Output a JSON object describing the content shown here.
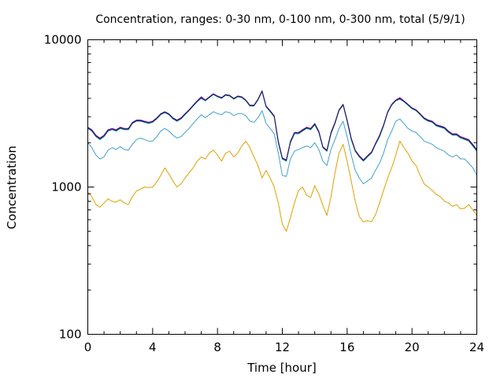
{
  "chart_data": {
    "type": "line",
    "title": "Concentration, ranges: 0-30 nm, 0-100 nm, 0-300 nm, total (5/9/1)",
    "xlabel": "Time [hour]",
    "ylabel": "Concentration",
    "xlim": [
      0,
      24
    ],
    "ylim": [
      100,
      10000
    ],
    "y_scale": "log",
    "x_ticks": [
      0,
      4,
      8,
      12,
      16,
      20,
      24
    ],
    "x_tick_labels": [
      "0",
      "4",
      "8",
      "12",
      "16",
      "20",
      "24"
    ],
    "y_ticks": [
      100,
      1000,
      10000
    ],
    "y_tick_labels": [
      "100",
      "1000",
      "10000"
    ],
    "legend": "none",
    "grid": false,
    "series": [
      {
        "color": "#e0a000",
        "x": [
          0,
          0.25,
          0.5,
          0.75,
          1,
          1.25,
          1.5,
          1.75,
          2,
          2.25,
          2.5,
          2.75,
          3,
          3.25,
          3.5,
          3.75,
          4,
          4.25,
          4.5,
          4.75,
          5,
          5.25,
          5.5,
          5.75,
          6,
          6.25,
          6.5,
          6.75,
          7,
          7.25,
          7.5,
          7.75,
          8,
          8.25,
          8.5,
          8.75,
          9,
          9.25,
          9.5,
          9.75,
          10,
          10.25,
          10.5,
          10.75,
          11,
          11.25,
          11.5,
          11.75,
          12,
          12.25,
          12.5,
          12.75,
          13,
          13.25,
          13.5,
          13.75,
          14,
          14.25,
          14.5,
          14.75,
          15,
          15.25,
          15.5,
          15.75,
          16,
          16.25,
          16.5,
          16.75,
          17,
          17.25,
          17.5,
          17.75,
          18,
          18.25,
          18.5,
          18.75,
          19,
          19.25,
          19.5,
          19.75,
          20,
          20.25,
          20.5,
          20.75,
          21,
          21.25,
          21.5,
          21.75,
          22,
          22.25,
          22.5,
          22.75,
          23,
          23.25,
          23.5,
          23.75,
          24
        ],
        "values": [
          920,
          860,
          760,
          730,
          780,
          830,
          800,
          790,
          820,
          780,
          760,
          860,
          940,
          970,
          1000,
          990,
          1000,
          1080,
          1200,
          1350,
          1230,
          1100,
          1000,
          1050,
          1150,
          1250,
          1350,
          1500,
          1600,
          1550,
          1700,
          1780,
          1650,
          1500,
          1700,
          1750,
          1600,
          1700,
          1900,
          2050,
          1850,
          1600,
          1400,
          1150,
          1300,
          1150,
          1000,
          780,
          560,
          500,
          620,
          780,
          950,
          1000,
          880,
          850,
          1020,
          900,
          750,
          640,
          860,
          1250,
          1700,
          1950,
          1500,
          1100,
          800,
          630,
          580,
          590,
          580,
          650,
          780,
          950,
          1150,
          1350,
          1650,
          2050,
          1850,
          1700,
          1500,
          1400,
          1200,
          1050,
          1000,
          950,
          890,
          860,
          800,
          780,
          740,
          760,
          710,
          720,
          760,
          700,
          640
        ]
      },
      {
        "color": "#40a0d0",
        "x": [
          0,
          0.25,
          0.5,
          0.75,
          1,
          1.25,
          1.5,
          1.75,
          2,
          2.25,
          2.5,
          2.75,
          3,
          3.25,
          3.5,
          3.75,
          4,
          4.25,
          4.5,
          4.75,
          5,
          5.25,
          5.5,
          5.75,
          6,
          6.25,
          6.5,
          6.75,
          7,
          7.25,
          7.5,
          7.75,
          8,
          8.25,
          8.5,
          8.75,
          9,
          9.25,
          9.5,
          9.75,
          10,
          10.25,
          10.5,
          10.75,
          11,
          11.25,
          11.5,
          11.75,
          12,
          12.25,
          12.5,
          12.75,
          13,
          13.25,
          13.5,
          13.75,
          14,
          14.25,
          14.5,
          14.75,
          15,
          15.25,
          15.5,
          15.75,
          16,
          16.25,
          16.5,
          16.75,
          17,
          17.25,
          17.5,
          17.75,
          18,
          18.25,
          18.5,
          18.75,
          19,
          19.25,
          19.5,
          19.75,
          20,
          20.25,
          20.5,
          20.75,
          21,
          21.25,
          21.5,
          21.75,
          22,
          22.25,
          22.5,
          22.75,
          23,
          23.25,
          23.5,
          23.75,
          24
        ],
        "values": [
          2000,
          1850,
          1650,
          1550,
          1600,
          1780,
          1850,
          1800,
          1880,
          1800,
          1780,
          1950,
          2100,
          2150,
          2100,
          2050,
          2050,
          2200,
          2400,
          2500,
          2400,
          2250,
          2150,
          2200,
          2350,
          2500,
          2700,
          2900,
          3100,
          2950,
          3100,
          3250,
          3150,
          3100,
          3250,
          3200,
          3050,
          3150,
          3150,
          3050,
          2800,
          2750,
          2950,
          3300,
          2700,
          2500,
          2300,
          1700,
          1200,
          1180,
          1550,
          1750,
          1800,
          1850,
          1900,
          1850,
          2000,
          1800,
          1500,
          1400,
          1800,
          2100,
          2500,
          2800,
          2200,
          1650,
          1300,
          1150,
          1050,
          1100,
          1150,
          1300,
          1450,
          1700,
          2100,
          2400,
          2800,
          2900,
          2700,
          2500,
          2400,
          2350,
          2200,
          2050,
          2000,
          1950,
          1850,
          1800,
          1750,
          1650,
          1600,
          1650,
          1550,
          1550,
          1450,
          1350,
          1200
        ]
      },
      {
        "color": "#008080",
        "x": [
          0,
          0.25,
          0.5,
          0.75,
          1,
          1.25,
          1.5,
          1.75,
          2,
          2.25,
          2.5,
          2.75,
          3,
          3.25,
          3.5,
          3.75,
          4,
          4.25,
          4.5,
          4.75,
          5,
          5.25,
          5.5,
          5.75,
          6,
          6.25,
          6.5,
          6.75,
          7,
          7.25,
          7.5,
          7.75,
          8,
          8.25,
          8.5,
          8.75,
          9,
          9.25,
          9.5,
          9.75,
          10,
          10.25,
          10.5,
          10.75,
          11,
          11.25,
          11.5,
          11.75,
          12,
          12.25,
          12.5,
          12.75,
          13,
          13.25,
          13.5,
          13.75,
          14,
          14.25,
          14.5,
          14.75,
          15,
          15.25,
          15.5,
          15.75,
          16,
          16.25,
          16.5,
          16.75,
          17,
          17.25,
          17.5,
          17.75,
          18,
          18.25,
          18.5,
          18.75,
          19,
          19.25,
          19.5,
          19.75,
          20,
          20.25,
          20.5,
          20.75,
          21,
          21.25,
          21.5,
          21.75,
          22,
          22.25,
          22.5,
          22.75,
          23,
          23.25,
          23.5,
          23.75,
          24
        ],
        "values": [
          2500,
          2400,
          2200,
          2100,
          2200,
          2400,
          2450,
          2400,
          2500,
          2450,
          2450,
          2700,
          2800,
          2800,
          2750,
          2700,
          2750,
          2900,
          3100,
          3200,
          3100,
          2900,
          2800,
          2900,
          3100,
          3300,
          3550,
          3800,
          4000,
          3850,
          4050,
          4250,
          4100,
          4000,
          4200,
          4150,
          3950,
          4100,
          4050,
          3850,
          3550,
          3550,
          3900,
          4450,
          3500,
          3250,
          3000,
          2000,
          1550,
          1500,
          2000,
          2300,
          2300,
          2400,
          2500,
          2450,
          2650,
          2350,
          1850,
          1750,
          2300,
          2700,
          3300,
          3600,
          2800,
          2100,
          1750,
          1600,
          1500,
          1600,
          1700,
          1950,
          2200,
          2600,
          3200,
          3600,
          3850,
          3950,
          3800,
          3600,
          3400,
          3300,
          3100,
          2900,
          2800,
          2750,
          2600,
          2550,
          2500,
          2350,
          2250,
          2250,
          2150,
          2100,
          2050,
          1900,
          1750
        ]
      },
      {
        "color": "#c000c0",
        "x": [
          0,
          0.25,
          0.5,
          0.75,
          1,
          1.25,
          1.5,
          1.75,
          2,
          2.25,
          2.5,
          2.75,
          3,
          3.25,
          3.5,
          3.75,
          4,
          4.25,
          4.5,
          4.75,
          5,
          5.25,
          5.5,
          5.75,
          6,
          6.25,
          6.5,
          6.75,
          7,
          7.25,
          7.5,
          7.75,
          8,
          8.25,
          8.5,
          8.75,
          9,
          9.25,
          9.5,
          9.75,
          10,
          10.25,
          10.5,
          10.75,
          11,
          11.25,
          11.5,
          11.75,
          12,
          12.25,
          12.5,
          12.75,
          13,
          13.25,
          13.5,
          13.75,
          14,
          14.25,
          14.5,
          14.75,
          15,
          15.25,
          15.5,
          15.75,
          16,
          16.25,
          16.5,
          16.75,
          17,
          17.25,
          17.5,
          17.75,
          18,
          18.25,
          18.5,
          18.75,
          19,
          19.25,
          19.5,
          19.75,
          20,
          20.25,
          20.5,
          20.75,
          21,
          21.25,
          21.5,
          21.75,
          22,
          22.25,
          22.5,
          22.75,
          23,
          23.25,
          23.5,
          23.75,
          24
        ],
        "values": [
          2550,
          2450,
          2250,
          2150,
          2250,
          2450,
          2500,
          2450,
          2550,
          2500,
          2500,
          2750,
          2850,
          2850,
          2800,
          2750,
          2800,
          2950,
          3150,
          3250,
          3150,
          2950,
          2850,
          2950,
          3150,
          3350,
          3600,
          3850,
          4100,
          3900,
          4100,
          4300,
          4150,
          4050,
          4250,
          4200,
          4000,
          4150,
          4100,
          3900,
          3600,
          3600,
          3950,
          4500,
          3550,
          3300,
          3050,
          2050,
          1580,
          1530,
          2050,
          2350,
          2350,
          2450,
          2550,
          2500,
          2700,
          2400,
          1880,
          1780,
          2350,
          2750,
          3350,
          3650,
          2850,
          2150,
          1780,
          1630,
          1530,
          1630,
          1730,
          1980,
          2250,
          2650,
          3250,
          3650,
          3900,
          4050,
          3850,
          3650,
          3450,
          3350,
          3150,
          2950,
          2850,
          2800,
          2650,
          2600,
          2550,
          2400,
          2300,
          2300,
          2200,
          2150,
          2100,
          1950,
          1800
        ]
      },
      {
        "color": "#102060",
        "x": [
          0,
          0.25,
          0.5,
          0.75,
          1,
          1.25,
          1.5,
          1.75,
          2,
          2.25,
          2.5,
          2.75,
          3,
          3.25,
          3.5,
          3.75,
          4,
          4.25,
          4.5,
          4.75,
          5,
          5.25,
          5.5,
          5.75,
          6,
          6.25,
          6.5,
          6.75,
          7,
          7.25,
          7.5,
          7.75,
          8,
          8.25,
          8.5,
          8.75,
          9,
          9.25,
          9.5,
          9.75,
          10,
          10.25,
          10.5,
          10.75,
          11,
          11.25,
          11.5,
          11.75,
          12,
          12.25,
          12.5,
          12.75,
          13,
          13.25,
          13.5,
          13.75,
          14,
          14.25,
          14.5,
          14.75,
          15,
          15.25,
          15.5,
          15.75,
          16,
          16.25,
          16.5,
          16.75,
          17,
          17.25,
          17.5,
          17.75,
          18,
          18.25,
          18.5,
          18.75,
          19,
          19.25,
          19.5,
          19.75,
          20,
          20.25,
          20.5,
          20.75,
          21,
          21.25,
          21.5,
          21.75,
          22,
          22.25,
          22.5,
          22.75,
          23,
          23.25,
          23.5,
          23.75,
          24
        ],
        "values": [
          2530,
          2430,
          2230,
          2130,
          2230,
          2430,
          2480,
          2430,
          2530,
          2480,
          2480,
          2730,
          2830,
          2830,
          2780,
          2730,
          2780,
          2930,
          3130,
          3230,
          3130,
          2930,
          2830,
          2930,
          3130,
          3330,
          3580,
          3830,
          4060,
          3880,
          4080,
          4280,
          4130,
          4030,
          4230,
          4180,
          3980,
          4130,
          4080,
          3880,
          3580,
          3580,
          3930,
          4480,
          3530,
          3280,
          3030,
          2030,
          1570,
          1520,
          2030,
          2330,
          2330,
          2430,
          2530,
          2480,
          2680,
          2380,
          1870,
          1770,
          2330,
          2730,
          3330,
          3630,
          2830,
          2130,
          1770,
          1620,
          1520,
          1620,
          1720,
          1970,
          2230,
          2630,
          3230,
          3630,
          3880,
          4000,
          3830,
          3630,
          3430,
          3330,
          3130,
          2930,
          2830,
          2780,
          2630,
          2580,
          2530,
          2380,
          2280,
          2280,
          2180,
          2130,
          2080,
          1930,
          1780
        ]
      }
    ]
  }
}
